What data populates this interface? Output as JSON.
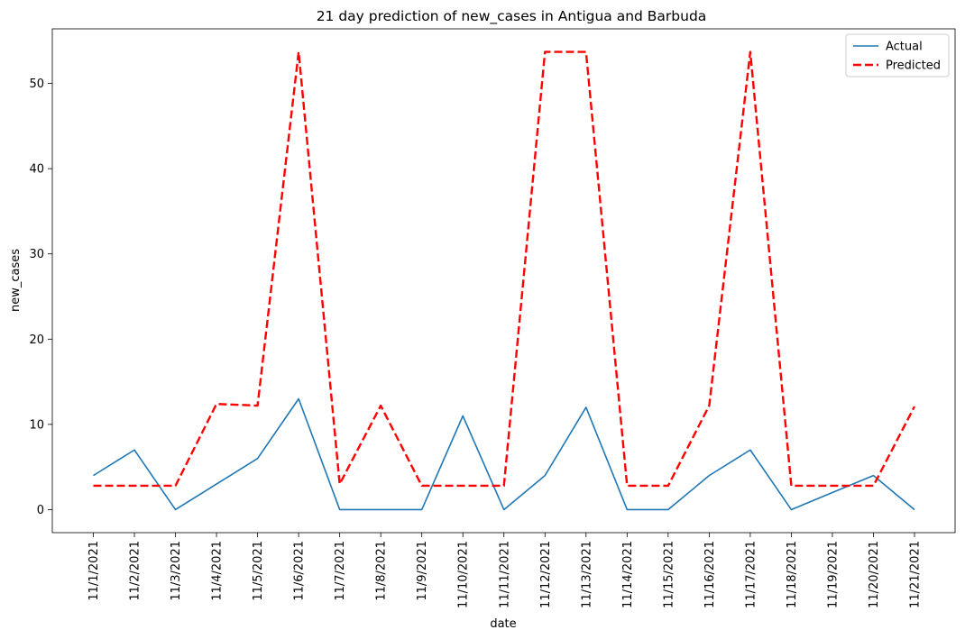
{
  "chart_data": {
    "type": "line",
    "title": "21 day prediction of new_cases in Antigua and Barbuda",
    "xlabel": "date",
    "ylabel": "new_cases",
    "categories": [
      "11/1/2021",
      "11/2/2021",
      "11/3/2021",
      "11/4/2021",
      "11/5/2021",
      "11/6/2021",
      "11/7/2021",
      "11/8/2021",
      "11/9/2021",
      "11/10/2021",
      "11/11/2021",
      "11/12/2021",
      "11/13/2021",
      "11/14/2021",
      "11/15/2021",
      "11/16/2021",
      "11/17/2021",
      "11/18/2021",
      "11/19/2021",
      "11/20/2021",
      "11/21/2021"
    ],
    "ylim": [
      -2.7,
      56.4
    ],
    "yticks": [
      0,
      10,
      20,
      30,
      40,
      50
    ],
    "grid": false,
    "legend_position": "top-right",
    "series": [
      {
        "name": "Actual",
        "color": "#1f77b4",
        "style": "solid",
        "values": [
          4,
          7,
          0,
          3,
          6,
          13,
          0,
          0,
          0,
          11,
          0,
          4,
          12,
          0,
          0,
          4,
          7,
          0,
          2,
          4,
          0
        ]
      },
      {
        "name": "Predicted",
        "color": "#ff0000",
        "style": "dashed",
        "values": [
          2.8,
          2.8,
          2.8,
          12.4,
          12.2,
          53.7,
          3.0,
          12.2,
          2.8,
          2.8,
          2.8,
          53.7,
          53.7,
          2.8,
          2.8,
          12.2,
          53.7,
          2.8,
          2.8,
          2.8,
          12.1
        ]
      }
    ]
  }
}
